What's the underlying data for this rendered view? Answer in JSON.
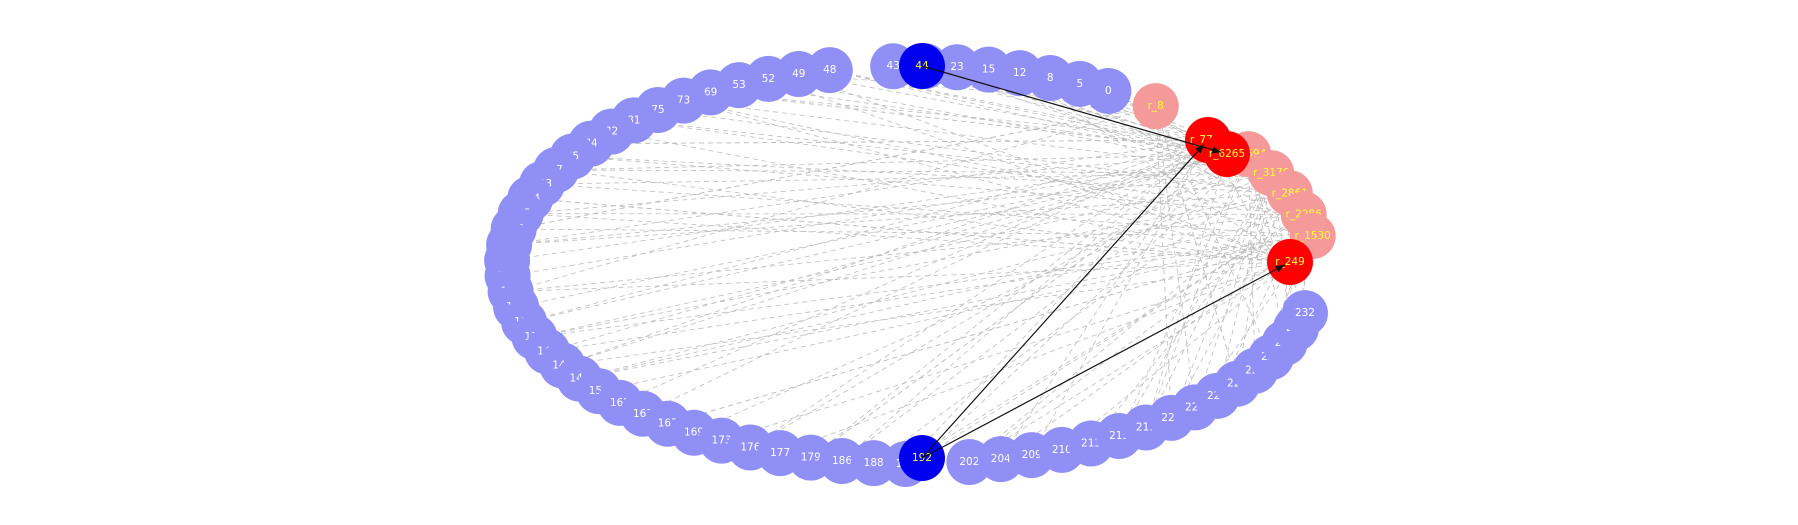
{
  "graph": {
    "colors": {
      "node_light_blue": "#8f8ff5",
      "node_light_red": "#f59a9a",
      "node_blue": "#0000ee",
      "node_red": "#ff0000",
      "label_light": "#ffffff",
      "label_highlight": "#ffff33",
      "edge_faint": "#bdbdbd",
      "edge_strong": "#111111"
    },
    "blue_nodes": [
      "0",
      "5",
      "8",
      "12",
      "15",
      "23",
      "34",
      "43",
      "44",
      "48",
      "49",
      "52",
      "53",
      "69",
      "73",
      "75",
      "81",
      "82",
      "84",
      "85",
      "97",
      "103",
      "114",
      "115",
      "116",
      "118",
      "128",
      "129",
      "133",
      "136",
      "138",
      "139",
      "143",
      "145",
      "146",
      "156",
      "162",
      "163",
      "167",
      "169",
      "173",
      "176",
      "177",
      "179",
      "186",
      "188",
      "190",
      "192",
      "202",
      "204",
      "209",
      "210",
      "213",
      "215",
      "219",
      "220",
      "222",
      "223",
      "225",
      "226",
      "227",
      "229",
      "231",
      "232"
    ],
    "red_nodes": [
      "r_8",
      "r_7728",
      "r_6265",
      "r_4594",
      "r_3176",
      "r_2861",
      "r_2286",
      "r_1530",
      "r_249"
    ],
    "highlighted": [
      "44",
      "192",
      "r_7728",
      "r_6265",
      "r_249"
    ],
    "strong_edges": [
      [
        "44",
        "r_6265"
      ],
      [
        "192",
        "r_7728"
      ],
      [
        "192",
        "r_249"
      ]
    ]
  }
}
